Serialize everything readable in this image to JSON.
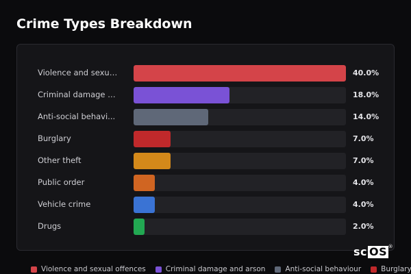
{
  "title": "Crime Types Breakdown",
  "logo": {
    "text_a": "sc",
    "text_b": "OS",
    "mark": "®"
  },
  "chart_data": {
    "type": "bar",
    "orientation": "horizontal",
    "value_unit": "%",
    "xlim": [
      0,
      40
    ],
    "categories": [
      "Violence and sexual offences",
      "Criminal damage and arson",
      "Anti-social behaviour",
      "Burglary",
      "Other theft",
      "Public order",
      "Vehicle crime",
      "Drugs"
    ],
    "display_labels": [
      "Violence and sexua...",
      "Criminal damage an...",
      "Anti-social behavi...",
      "Burglary",
      "Other theft",
      "Public order",
      "Vehicle crime",
      "Drugs"
    ],
    "values": [
      40.0,
      18.0,
      14.0,
      7.0,
      7.0,
      4.0,
      4.0,
      2.0
    ],
    "value_labels": [
      "40.0%",
      "18.0%",
      "14.0%",
      "7.0%",
      "7.0%",
      "4.0%",
      "4.0%",
      "2.0%"
    ],
    "colors": [
      "#d44449",
      "#7a52d6",
      "#5f6878",
      "#c0292b",
      "#d4891a",
      "#d06522",
      "#3a73d4",
      "#22a852"
    ],
    "legend": {
      "placement": "bottom",
      "items": [
        {
          "label": "Violence and sexual offences",
          "color": "#d44449"
        },
        {
          "label": "Criminal damage and arson",
          "color": "#7a52d6"
        },
        {
          "label": "Anti-social behaviour",
          "color": "#5f6878"
        },
        {
          "label": "Burglary",
          "color": "#c0292b"
        }
      ]
    }
  }
}
